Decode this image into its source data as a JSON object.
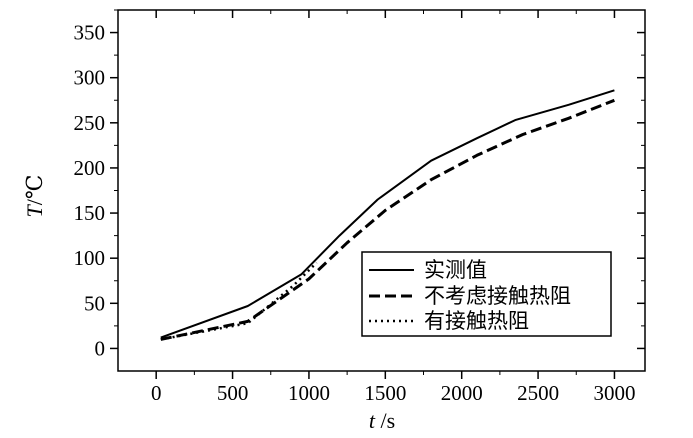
{
  "chart_data": {
    "type": "line",
    "title": "",
    "xlabel_var": "t",
    "xlabel_unit": " /s",
    "ylabel_var": "T",
    "ylabel_unit": "/℃",
    "xlim": [
      -250,
      3200
    ],
    "ylim": [
      -25,
      375
    ],
    "xticks": [
      0,
      500,
      1000,
      1500,
      2000,
      2500,
      3000
    ],
    "yticks": [
      0,
      50,
      100,
      150,
      200,
      250,
      300,
      350
    ],
    "xtick_labels": [
      "0",
      "500",
      "1000",
      "1500",
      "2000",
      "2500",
      "3000"
    ],
    "ytick_labels": [
      "0",
      "50",
      "100",
      "150",
      "200",
      "250",
      "300",
      "350"
    ],
    "grid": false,
    "legend_position": "bottom-right",
    "series": [
      {
        "name": "实测值",
        "line_style": "solid",
        "color": "#000000",
        "x": [
          30,
          600,
          950,
          1200,
          1450,
          1800,
          2100,
          2350,
          2700,
          3000
        ],
        "y": [
          12,
          47,
          82,
          125,
          165,
          208,
          233,
          253,
          270,
          286
        ]
      },
      {
        "name": "不考虑接触热阻",
        "line_style": "dashed",
        "color": "#000000",
        "x": [
          30,
          600,
          1000,
          1250,
          1500,
          1800,
          2100,
          2400,
          2700,
          3000
        ],
        "y": [
          10,
          30,
          77,
          117,
          153,
          187,
          214,
          237,
          255,
          275
        ]
      },
      {
        "name": "有接触热阻",
        "line_style": "dotted",
        "color": "#000000",
        "x": [
          30,
          600,
          900,
          1050
        ],
        "y": [
          10,
          28,
          70,
          95
        ]
      }
    ]
  }
}
